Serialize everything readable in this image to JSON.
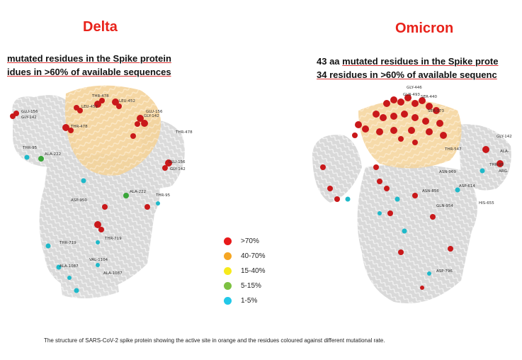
{
  "panels": {
    "delta": {
      "title": "Delta",
      "line1": "mutated residues in the Spike protein",
      "line2": "idues in >60% of available sequences",
      "labels": [
        "THR-478",
        "LEU-452",
        "GLU-156",
        "GLY-142",
        "GLU-156",
        "GLY-142",
        "LEU-452",
        "THR-478",
        "THR-95",
        "ALA-222",
        "GLU-156",
        "GLY-142",
        "THR-478",
        "ALA-222",
        "THR-95",
        "ASP-950",
        "THR-719",
        "THR-719",
        "ALA-1087",
        "VAL-1104",
        "ALA-1087"
      ]
    },
    "omicron": {
      "title": "Omicron",
      "line1_prefix": "43 aa ",
      "line1_rest": "mutated residues in the Spike prote",
      "line2_prefix": "34 residues in >60% of available sequenc",
      "labels": [
        "GLY-446",
        "GLN-493",
        "SER-440",
        "SER-373",
        "THR-547",
        "GLY-142",
        "ALA-",
        "THR-95",
        "ARG-",
        "ASN-969",
        "ASN-856",
        "ASP-614",
        "GLN-954",
        "HIS-655",
        "ASP-796"
      ]
    }
  },
  "legend": [
    {
      "label": ">70%",
      "color": "#e8191a"
    },
    {
      "label": "40-70%",
      "color": "#f5a623"
    },
    {
      "label": "15-40%",
      "color": "#f7ea1c"
    },
    {
      "label": "5-15%",
      "color": "#7dc142"
    },
    {
      "label": "1-5%",
      "color": "#22c8e8"
    }
  ],
  "caption": "The structure of SARS-CoV-2 spike protein showing the active site in orange and the residues coloured against different mutational rate."
}
